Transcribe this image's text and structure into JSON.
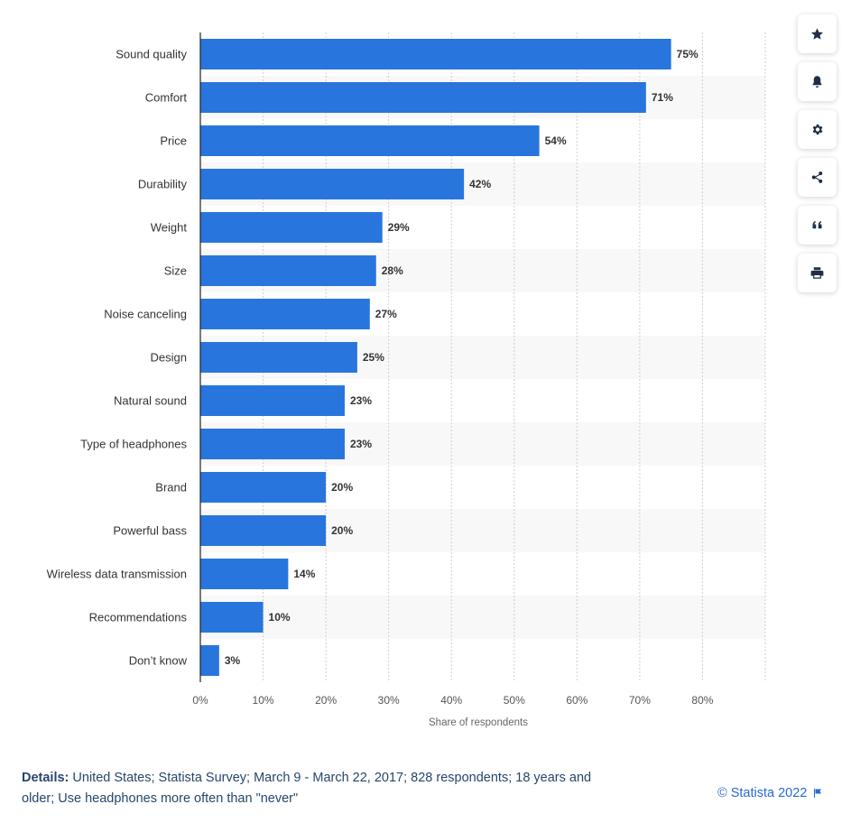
{
  "chart_data": {
    "type": "bar",
    "orientation": "horizontal",
    "categories": [
      "Sound quality",
      "Comfort",
      "Price",
      "Durability",
      "Weight",
      "Size",
      "Noise canceling",
      "Design",
      "Natural sound",
      "Type of headphones",
      "Brand",
      "Powerful bass",
      "Wireless data transmission",
      "Recommendations",
      "Don’t know"
    ],
    "values": [
      75,
      71,
      54,
      42,
      29,
      28,
      27,
      25,
      23,
      23,
      20,
      20,
      14,
      10,
      3
    ],
    "value_labels": [
      "75%",
      "71%",
      "54%",
      "42%",
      "29%",
      "28%",
      "27%",
      "25%",
      "23%",
      "23%",
      "20%",
      "20%",
      "14%",
      "10%",
      "3%"
    ],
    "x_ticks": [
      0,
      10,
      20,
      30,
      40,
      50,
      60,
      70,
      80
    ],
    "x_tick_labels": [
      "0%",
      "10%",
      "20%",
      "30%",
      "40%",
      "50%",
      "60%",
      "70%",
      "80%"
    ],
    "xlim": [
      0,
      90
    ],
    "xlabel": "Share of respondents",
    "grid": true,
    "bar_color": "#2876dd",
    "stripe_color": "#f8f8f8"
  },
  "footer": {
    "details_label": "Details:",
    "details_text": "United States; Statista Survey; March 9 - March 22, 2017; 828 respondents; 18 years and older; Use headphones more often than \"never\"",
    "copyright": "© Statista 2022"
  },
  "toolbar": {
    "icons": [
      "star-icon",
      "bell-icon",
      "gear-icon",
      "share-icon",
      "quote-icon",
      "print-icon"
    ]
  }
}
